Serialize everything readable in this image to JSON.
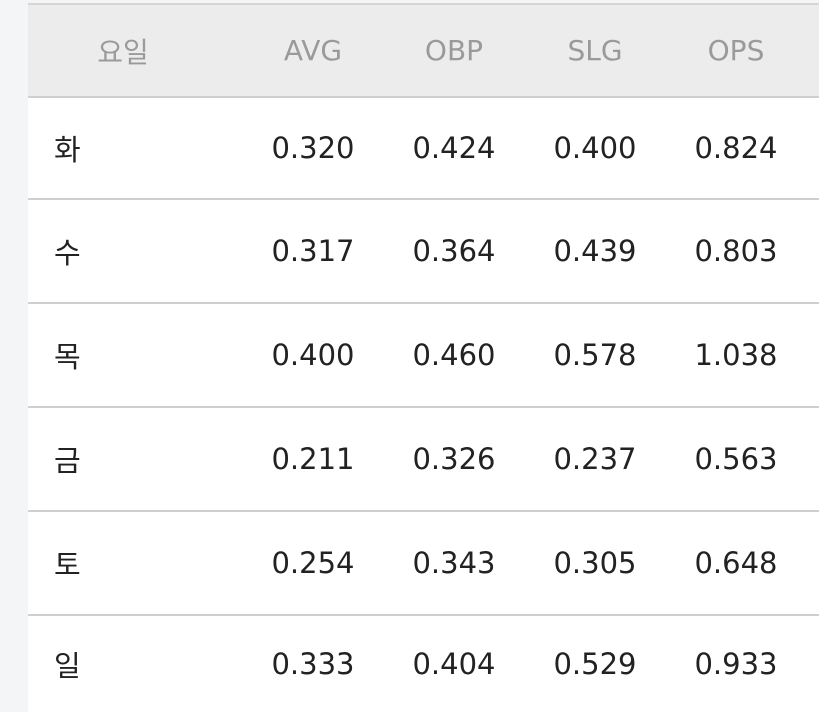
{
  "table": {
    "header": [
      "요일",
      "AVG",
      "OBP",
      "SLG",
      "OPS"
    ],
    "rows": [
      [
        "화",
        "0.320",
        "0.424",
        "0.400",
        "0.824"
      ],
      [
        "수",
        "0.317",
        "0.364",
        "0.439",
        "0.803"
      ],
      [
        "목",
        "0.400",
        "0.460",
        "0.578",
        "1.038"
      ],
      [
        "금",
        "0.211",
        "0.326",
        "0.237",
        "0.563"
      ],
      [
        "토",
        "0.254",
        "0.343",
        "0.305",
        "0.648"
      ],
      [
        "일",
        "0.333",
        "0.404",
        "0.529",
        "0.933"
      ]
    ]
  }
}
